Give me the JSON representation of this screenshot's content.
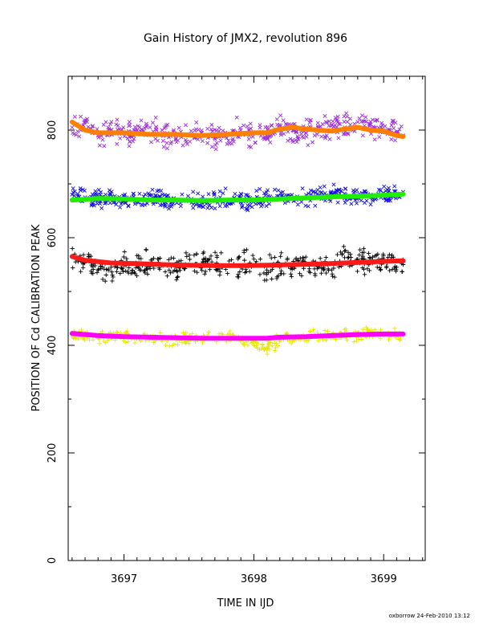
{
  "chart_data": {
    "type": "scatter",
    "title": "Gain History of JMX2, revolution 896",
    "xlabel": "TIME IN IJD",
    "ylabel": "POSITION OF Cd CALIBRATION PEAK",
    "xlim": [
      3696.57,
      3699.32
    ],
    "ylim": [
      0,
      900
    ],
    "xticks": [
      3697,
      3698,
      3699
    ],
    "yticks": [
      0,
      200,
      400,
      600,
      800
    ],
    "grid": false,
    "legend": "none",
    "footer": "oxborrow 24-Feb-2010 13:12",
    "series": [
      {
        "marker": "x",
        "color": "#9b30d6",
        "scatter_spread": 18,
        "points": [
          [
            3696.6,
            805
          ],
          [
            3696.7,
            815
          ],
          [
            3696.8,
            790
          ],
          [
            3696.9,
            800
          ],
          [
            3697.0,
            795
          ],
          [
            3697.1,
            792
          ],
          [
            3697.2,
            805
          ],
          [
            3697.3,
            790
          ],
          [
            3697.4,
            785
          ],
          [
            3697.5,
            790
          ],
          [
            3697.6,
            795
          ],
          [
            3697.7,
            788
          ],
          [
            3697.8,
            792
          ],
          [
            3697.9,
            800
          ],
          [
            3698.0,
            795
          ],
          [
            3698.1,
            790
          ],
          [
            3698.2,
            805
          ],
          [
            3698.3,
            800
          ],
          [
            3698.4,
            795
          ],
          [
            3698.5,
            805
          ],
          [
            3698.6,
            810
          ],
          [
            3698.7,
            805
          ],
          [
            3698.8,
            815
          ],
          [
            3698.9,
            810
          ],
          [
            3699.0,
            800
          ],
          [
            3699.1,
            795
          ],
          [
            3699.15,
            790
          ]
        ]
      },
      {
        "marker": "x",
        "color": "#1010e0",
        "scatter_spread": 14,
        "points": [
          [
            3696.6,
            680
          ],
          [
            3696.7,
            675
          ],
          [
            3696.8,
            670
          ],
          [
            3696.9,
            672
          ],
          [
            3697.0,
            668
          ],
          [
            3697.1,
            670
          ],
          [
            3697.2,
            672
          ],
          [
            3697.3,
            668
          ],
          [
            3697.4,
            670
          ],
          [
            3697.5,
            668
          ],
          [
            3697.6,
            665
          ],
          [
            3697.7,
            668
          ],
          [
            3697.8,
            670
          ],
          [
            3697.9,
            668
          ],
          [
            3698.0,
            670
          ],
          [
            3698.1,
            672
          ],
          [
            3698.2,
            675
          ],
          [
            3698.3,
            672
          ],
          [
            3698.4,
            675
          ],
          [
            3698.5,
            678
          ],
          [
            3698.6,
            680
          ],
          [
            3698.7,
            678
          ],
          [
            3698.8,
            675
          ],
          [
            3698.9,
            680
          ],
          [
            3699.0,
            678
          ],
          [
            3699.1,
            682
          ],
          [
            3699.15,
            685
          ]
        ]
      },
      {
        "marker": "+",
        "color": "#000000",
        "scatter_spread": 20,
        "points": [
          [
            3696.6,
            565
          ],
          [
            3696.7,
            558
          ],
          [
            3696.8,
            540
          ],
          [
            3696.9,
            545
          ],
          [
            3697.0,
            548
          ],
          [
            3697.1,
            550
          ],
          [
            3697.2,
            552
          ],
          [
            3697.3,
            548
          ],
          [
            3697.4,
            545
          ],
          [
            3697.5,
            550
          ],
          [
            3697.6,
            552
          ],
          [
            3697.7,
            550
          ],
          [
            3697.8,
            548
          ],
          [
            3697.9,
            545
          ],
          [
            3698.0,
            548
          ],
          [
            3698.1,
            540
          ],
          [
            3698.2,
            545
          ],
          [
            3698.3,
            548
          ],
          [
            3698.4,
            550
          ],
          [
            3698.5,
            545
          ],
          [
            3698.6,
            540
          ],
          [
            3698.7,
            575
          ],
          [
            3698.8,
            560
          ],
          [
            3698.9,
            555
          ],
          [
            3699.0,
            560
          ],
          [
            3699.1,
            545
          ],
          [
            3699.15,
            550
          ]
        ]
      },
      {
        "marker": "+",
        "color": "#e8e600",
        "scatter_spread": 9,
        "points": [
          [
            3696.6,
            420
          ],
          [
            3696.7,
            418
          ],
          [
            3696.8,
            415
          ],
          [
            3696.9,
            418
          ],
          [
            3697.0,
            415
          ],
          [
            3697.1,
            412
          ],
          [
            3697.2,
            415
          ],
          [
            3697.3,
            412
          ],
          [
            3697.4,
            410
          ],
          [
            3697.5,
            412
          ],
          [
            3697.6,
            414
          ],
          [
            3697.7,
            412
          ],
          [
            3697.8,
            414
          ],
          [
            3697.9,
            412
          ],
          [
            3698.0,
            405
          ],
          [
            3698.1,
            395
          ],
          [
            3698.2,
            410
          ],
          [
            3698.3,
            412
          ],
          [
            3698.4,
            415
          ],
          [
            3698.5,
            418
          ],
          [
            3698.6,
            420
          ],
          [
            3698.7,
            422
          ],
          [
            3698.8,
            420
          ],
          [
            3698.9,
            422
          ],
          [
            3699.0,
            420
          ],
          [
            3699.1,
            418
          ],
          [
            3699.15,
            420
          ]
        ]
      },
      {
        "marker": "line",
        "color": "#ff7f00",
        "points": [
          [
            3696.6,
            815
          ],
          [
            3696.7,
            800
          ],
          [
            3696.8,
            795
          ],
          [
            3697.0,
            795
          ],
          [
            3697.2,
            792
          ],
          [
            3697.4,
            792
          ],
          [
            3697.6,
            790
          ],
          [
            3697.8,
            792
          ],
          [
            3698.0,
            795
          ],
          [
            3698.1,
            795
          ],
          [
            3698.2,
            802
          ],
          [
            3698.3,
            805
          ],
          [
            3698.4,
            802
          ],
          [
            3698.5,
            800
          ],
          [
            3698.6,
            798
          ],
          [
            3698.7,
            802
          ],
          [
            3698.8,
            805
          ],
          [
            3698.9,
            800
          ],
          [
            3699.0,
            798
          ],
          [
            3699.1,
            790
          ],
          [
            3699.15,
            788
          ]
        ]
      },
      {
        "marker": "line",
        "color": "#22ee00",
        "points": [
          [
            3696.6,
            670
          ],
          [
            3696.8,
            673
          ],
          [
            3697.0,
            672
          ],
          [
            3697.2,
            670
          ],
          [
            3697.4,
            670
          ],
          [
            3697.6,
            669
          ],
          [
            3697.8,
            670
          ],
          [
            3698.0,
            670
          ],
          [
            3698.2,
            672
          ],
          [
            3698.4,
            674
          ],
          [
            3698.6,
            676
          ],
          [
            3698.8,
            677
          ],
          [
            3699.0,
            679
          ],
          [
            3699.15,
            681
          ]
        ]
      },
      {
        "marker": "line",
        "color": "#ff1a1a",
        "points": [
          [
            3696.6,
            565
          ],
          [
            3696.7,
            558
          ],
          [
            3696.9,
            553
          ],
          [
            3697.1,
            552
          ],
          [
            3697.3,
            550
          ],
          [
            3697.5,
            549
          ],
          [
            3697.7,
            548
          ],
          [
            3697.9,
            548
          ],
          [
            3698.1,
            549
          ],
          [
            3698.3,
            550
          ],
          [
            3698.5,
            551
          ],
          [
            3698.7,
            553
          ],
          [
            3698.9,
            555
          ],
          [
            3699.0,
            556
          ],
          [
            3699.15,
            557
          ]
        ]
      },
      {
        "marker": "line",
        "color": "#ff00ff",
        "points": [
          [
            3696.6,
            422
          ],
          [
            3696.8,
            418
          ],
          [
            3697.0,
            416
          ],
          [
            3697.2,
            415
          ],
          [
            3697.4,
            414
          ],
          [
            3697.6,
            413
          ],
          [
            3697.8,
            413
          ],
          [
            3698.0,
            413
          ],
          [
            3698.1,
            413
          ],
          [
            3698.2,
            415
          ],
          [
            3698.4,
            416
          ],
          [
            3698.6,
            418
          ],
          [
            3698.8,
            420
          ],
          [
            3699.0,
            421
          ],
          [
            3699.15,
            421
          ]
        ]
      }
    ]
  }
}
